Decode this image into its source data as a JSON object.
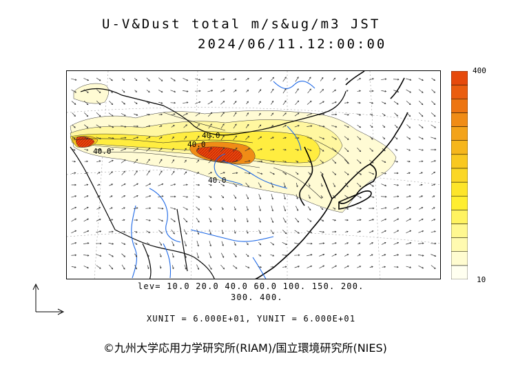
{
  "title": {
    "line1": "U-V&Dust total m/s&ug/m3 JST",
    "line2": "2024/06/11.12:00:00"
  },
  "legend": {
    "levels_line1": "lev= 10.0 20.0 40.0 60.0 100. 150. 200.",
    "levels_line2": "300. 400.",
    "units": "XUNIT = 6.000E+01, YUNIT = 6.000E+01"
  },
  "colorbar": {
    "max_label": "400",
    "min_label": "10",
    "colors": [
      "#fffff0",
      "#fffcd0",
      "#fffab0",
      "#fff890",
      "#fff360",
      "#ffee30",
      "#fde52a",
      "#fbd726",
      "#f9c820",
      "#f6b61c",
      "#f3a31a",
      "#f08c16",
      "#ed7512",
      "#ea5e10",
      "#e64a0c"
    ]
  },
  "contour_labels": [
    "40.0",
    "40.0",
    "40.0",
    "40.0"
  ],
  "colors": {
    "river": "#1a66e6",
    "coast": "#000000",
    "border": "#000000",
    "vector": "#333333"
  },
  "copyright": "©九州大学応用力学研究所(RIAM)/国立環境研究所(NIES)"
}
